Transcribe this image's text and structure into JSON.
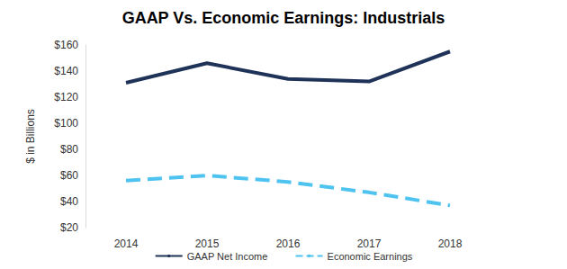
{
  "chart_data": {
    "type": "line",
    "title": "GAAP Vs. Economic Earnings: Industrials",
    "y_label": "$ in Billions",
    "categories": [
      "2014",
      "2015",
      "2016",
      "2017",
      "2018"
    ],
    "series": [
      {
        "name": "GAAP Net Income",
        "color": "#1f3358",
        "line_style": "solid",
        "values": [
          131,
          146,
          134,
          132,
          155
        ]
      },
      {
        "name": "Economic Earnings",
        "color": "#4fc3f0",
        "line_style": "dashed",
        "values": [
          56,
          60,
          55,
          47,
          37
        ]
      }
    ],
    "ylim": [
      20,
      160
    ],
    "yticks": [
      {
        "value": 20,
        "label": "$20"
      },
      {
        "value": 40,
        "label": "$40"
      },
      {
        "value": 60,
        "label": "$60"
      },
      {
        "value": 80,
        "label": "$80"
      },
      {
        "value": 100,
        "label": "$100"
      },
      {
        "value": 120,
        "label": "$120"
      },
      {
        "value": 140,
        "label": "$140"
      },
      {
        "value": 160,
        "label": "$160"
      }
    ],
    "grid": false,
    "legend": "bottom"
  }
}
